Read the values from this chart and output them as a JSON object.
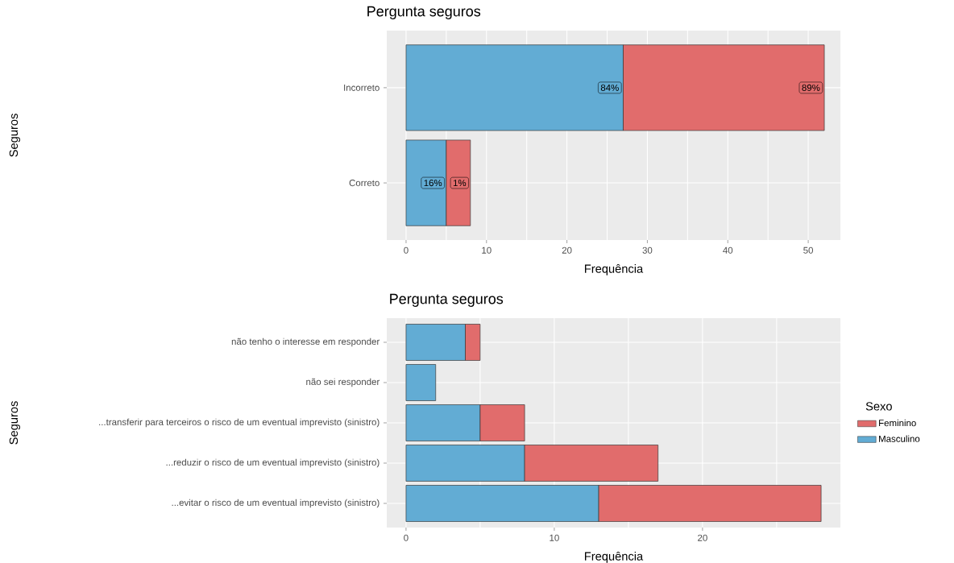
{
  "chart_data": [
    {
      "type": "bar",
      "orientation": "horizontal",
      "stacked": true,
      "title": "Pergunta seguros",
      "xlabel": "Frequência",
      "ylabel": "Seguros",
      "categories": [
        "Incorreto",
        "Correto"
      ],
      "series": [
        {
          "color": "#62acd4",
          "values": [
            27,
            5
          ]
        },
        {
          "color": "#e16c6c",
          "values": [
            25,
            3
          ]
        }
      ],
      "annotations": [
        {
          "text": "84%",
          "x": 27,
          "y": "Incorreto"
        },
        {
          "text": "89%",
          "x": 52,
          "y": "Incorreto"
        },
        {
          "text": "16%",
          "x": 5,
          "y": "Correto"
        },
        {
          "text": "1%",
          "x": 8,
          "y": "Correto"
        }
      ],
      "xlim": [
        -2.4,
        54
      ],
      "xticks": [
        0,
        {
          "value": 5,
          "label": null
        },
        10,
        {
          "value": 15,
          "label": null
        },
        20,
        {
          "value": 25,
          "label": null
        },
        30,
        {
          "value": 35,
          "label": null
        },
        40,
        {
          "value": 45,
          "label": null
        },
        50
      ],
      "grid": true
    },
    {
      "type": "bar",
      "orientation": "horizontal",
      "stacked": true,
      "title": "Pergunta seguros",
      "xlabel": "Frequência",
      "ylabel": "Seguros",
      "legend_title": "Sexo",
      "legend": "right",
      "categories": [
        "não tenho o interesse em responder",
        "não sei responder",
        "...transferir para terceiros o risco de um eventual imprevisto (sinistro)",
        "...reduzir o risco de um eventual imprevisto (sinistro)",
        "...evitar o risco de um eventual imprevisto (sinistro)"
      ],
      "series": [
        {
          "name": "Masculino",
          "color": "#62acd4",
          "values": [
            4,
            2,
            5,
            8,
            13
          ]
        },
        {
          "name": "Feminino",
          "color": "#e16c6c",
          "values": [
            1,
            null,
            3,
            9,
            15
          ]
        }
      ],
      "xlim": [
        -1.3,
        29.3
      ],
      "xticks": [
        0,
        {
          "value": 5,
          "label": null
        },
        10,
        {
          "value": 15,
          "label": null
        },
        20,
        {
          "value": 25,
          "label": null
        }
      ],
      "grid": true
    }
  ]
}
